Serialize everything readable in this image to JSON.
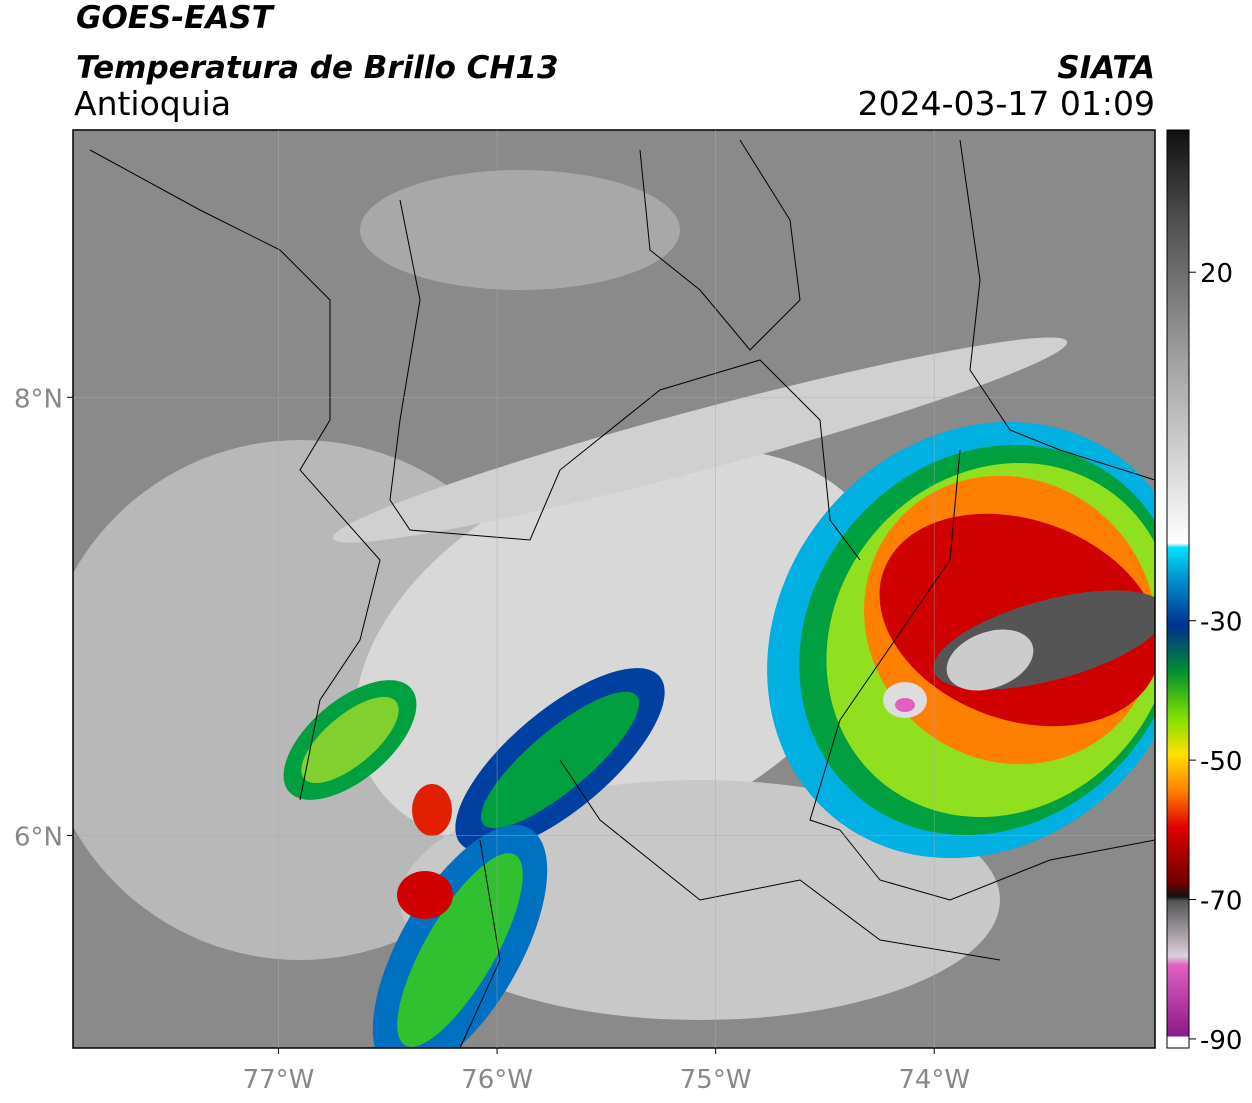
{
  "header": {
    "title": "GOES-EAST",
    "subtitle": "Temperatura de Brillo CH13",
    "region": "Antioquia",
    "source": "SIATA",
    "datetime": "2024-03-17 01:09"
  },
  "map": {
    "xlim": [
      -77.94,
      -72.99
    ],
    "ylim": [
      5.03,
      9.22
    ],
    "xticks": [
      {
        "value": -77,
        "label": "77°W"
      },
      {
        "value": -76,
        "label": "76°W"
      },
      {
        "value": -75,
        "label": "75°W"
      },
      {
        "value": -74,
        "label": "74°W"
      }
    ],
    "yticks": [
      {
        "value": 6,
        "label": "6°N"
      },
      {
        "value": 8,
        "label": "8°N"
      }
    ]
  },
  "colorbar": {
    "range": [
      -91.3,
      40.4
    ],
    "ticks": [
      -90,
      -70,
      -50,
      -30,
      20
    ]
  }
}
